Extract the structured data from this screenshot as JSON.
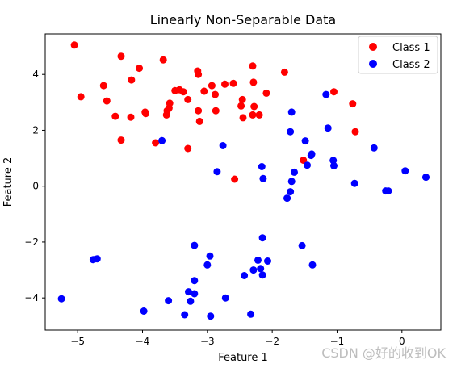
{
  "chart_data": {
    "type": "scatter",
    "title": "Linearly Non-Separable Data",
    "xlabel": "Feature 1",
    "ylabel": "Feature 2",
    "xlim": [
      -5.5,
      0.6
    ],
    "ylim": [
      -5.15,
      5.45
    ],
    "xticks": [
      -5,
      -4,
      -3,
      -2,
      -1,
      0
    ],
    "yticks": [
      -4,
      -2,
      0,
      2,
      4
    ],
    "grid": false,
    "legend_position": "top-right",
    "series": [
      {
        "name": "Class 1",
        "color": "#ff0000",
        "points": [
          [
            -5.05,
            5.05
          ],
          [
            -4.95,
            3.2
          ],
          [
            -4.6,
            3.6
          ],
          [
            -4.55,
            3.05
          ],
          [
            -4.42,
            2.5
          ],
          [
            -4.33,
            4.65
          ],
          [
            -4.33,
            1.65
          ],
          [
            -4.18,
            2.47
          ],
          [
            -4.17,
            3.8
          ],
          [
            -4.05,
            4.22
          ],
          [
            -3.96,
            2.65
          ],
          [
            -3.95,
            2.6
          ],
          [
            -3.8,
            1.55
          ],
          [
            -3.68,
            4.52
          ],
          [
            -3.63,
            2.55
          ],
          [
            -3.62,
            2.7
          ],
          [
            -3.58,
            2.97
          ],
          [
            -3.59,
            2.8
          ],
          [
            -3.5,
            3.42
          ],
          [
            -3.43,
            3.45
          ],
          [
            -3.37,
            3.38
          ],
          [
            -3.3,
            3.1
          ],
          [
            -3.3,
            1.35
          ],
          [
            -3.15,
            4.12
          ],
          [
            -3.14,
            4.0
          ],
          [
            -3.14,
            2.7
          ],
          [
            -3.12,
            2.32
          ],
          [
            -3.05,
            3.4
          ],
          [
            -2.93,
            3.6
          ],
          [
            -2.88,
            3.28
          ],
          [
            -2.87,
            2.7
          ],
          [
            -2.73,
            3.65
          ],
          [
            -2.6,
            3.68
          ],
          [
            -2.58,
            0.25
          ],
          [
            -2.48,
            2.87
          ],
          [
            -2.46,
            3.1
          ],
          [
            -2.45,
            2.45
          ],
          [
            -2.3,
            2.55
          ],
          [
            -2.3,
            4.3
          ],
          [
            -2.29,
            3.72
          ],
          [
            -2.28,
            2.85
          ],
          [
            -2.2,
            2.55
          ],
          [
            -2.09,
            3.33
          ],
          [
            -1.81,
            4.08
          ],
          [
            -1.52,
            0.93
          ],
          [
            -1.05,
            3.38
          ],
          [
            -0.76,
            2.95
          ],
          [
            -0.72,
            1.95
          ]
        ]
      },
      {
        "name": "Class 2",
        "color": "#0000ff",
        "points": [
          [
            -5.25,
            -4.03
          ],
          [
            -4.76,
            -2.63
          ],
          [
            -4.7,
            -2.6
          ],
          [
            -3.98,
            -4.47
          ],
          [
            -3.7,
            1.63
          ],
          [
            -3.6,
            -4.1
          ],
          [
            -3.35,
            -4.6
          ],
          [
            -3.29,
            -3.78
          ],
          [
            -3.26,
            -4.12
          ],
          [
            -3.2,
            -3.85
          ],
          [
            -3.2,
            -3.38
          ],
          [
            -3.2,
            -2.12
          ],
          [
            -3.0,
            -2.82
          ],
          [
            -2.96,
            -2.5
          ],
          [
            -2.95,
            -4.65
          ],
          [
            -2.85,
            0.52
          ],
          [
            -2.76,
            1.45
          ],
          [
            -2.72,
            -4.0
          ],
          [
            -2.43,
            -3.2
          ],
          [
            -2.33,
            -4.58
          ],
          [
            -2.29,
            -3.0
          ],
          [
            -2.22,
            -2.65
          ],
          [
            -2.18,
            -2.95
          ],
          [
            -2.16,
            0.7
          ],
          [
            -2.15,
            -3.18
          ],
          [
            -2.15,
            -1.85
          ],
          [
            -2.14,
            0.27
          ],
          [
            -2.07,
            -2.68
          ],
          [
            -1.77,
            -0.43
          ],
          [
            -1.72,
            1.95
          ],
          [
            -1.72,
            -0.2
          ],
          [
            -1.7,
            0.17
          ],
          [
            -1.7,
            2.65
          ],
          [
            -1.66,
            0.5
          ],
          [
            -1.54,
            -2.13
          ],
          [
            -1.49,
            1.62
          ],
          [
            -1.46,
            0.75
          ],
          [
            -1.4,
            1.1
          ],
          [
            -1.39,
            1.15
          ],
          [
            -1.38,
            -2.82
          ],
          [
            -1.17,
            3.28
          ],
          [
            -1.14,
            2.08
          ],
          [
            -1.06,
            0.92
          ],
          [
            -1.05,
            0.73
          ],
          [
            -0.73,
            0.1
          ],
          [
            -0.43,
            1.37
          ],
          [
            -0.25,
            -0.17
          ],
          [
            -0.21,
            -0.17
          ],
          [
            0.05,
            0.55
          ],
          [
            0.37,
            0.32
          ]
        ]
      }
    ]
  },
  "watermark": "CSDN @好的收到OK"
}
